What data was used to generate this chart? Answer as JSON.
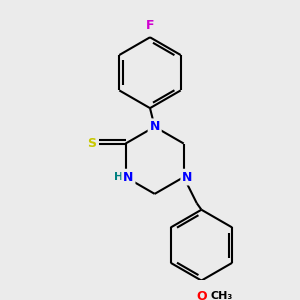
{
  "bg_color": "#ebebeb",
  "atom_colors": {
    "N": "#0000ff",
    "S": "#c8c800",
    "F": "#d000d0",
    "O": "#ff0000",
    "H": "#008080",
    "C": "#000000"
  },
  "bond_color": "#000000",
  "bond_width": 1.5,
  "font_size": 9,
  "fig_width": 3.0,
  "fig_height": 3.0,
  "dpi": 100
}
